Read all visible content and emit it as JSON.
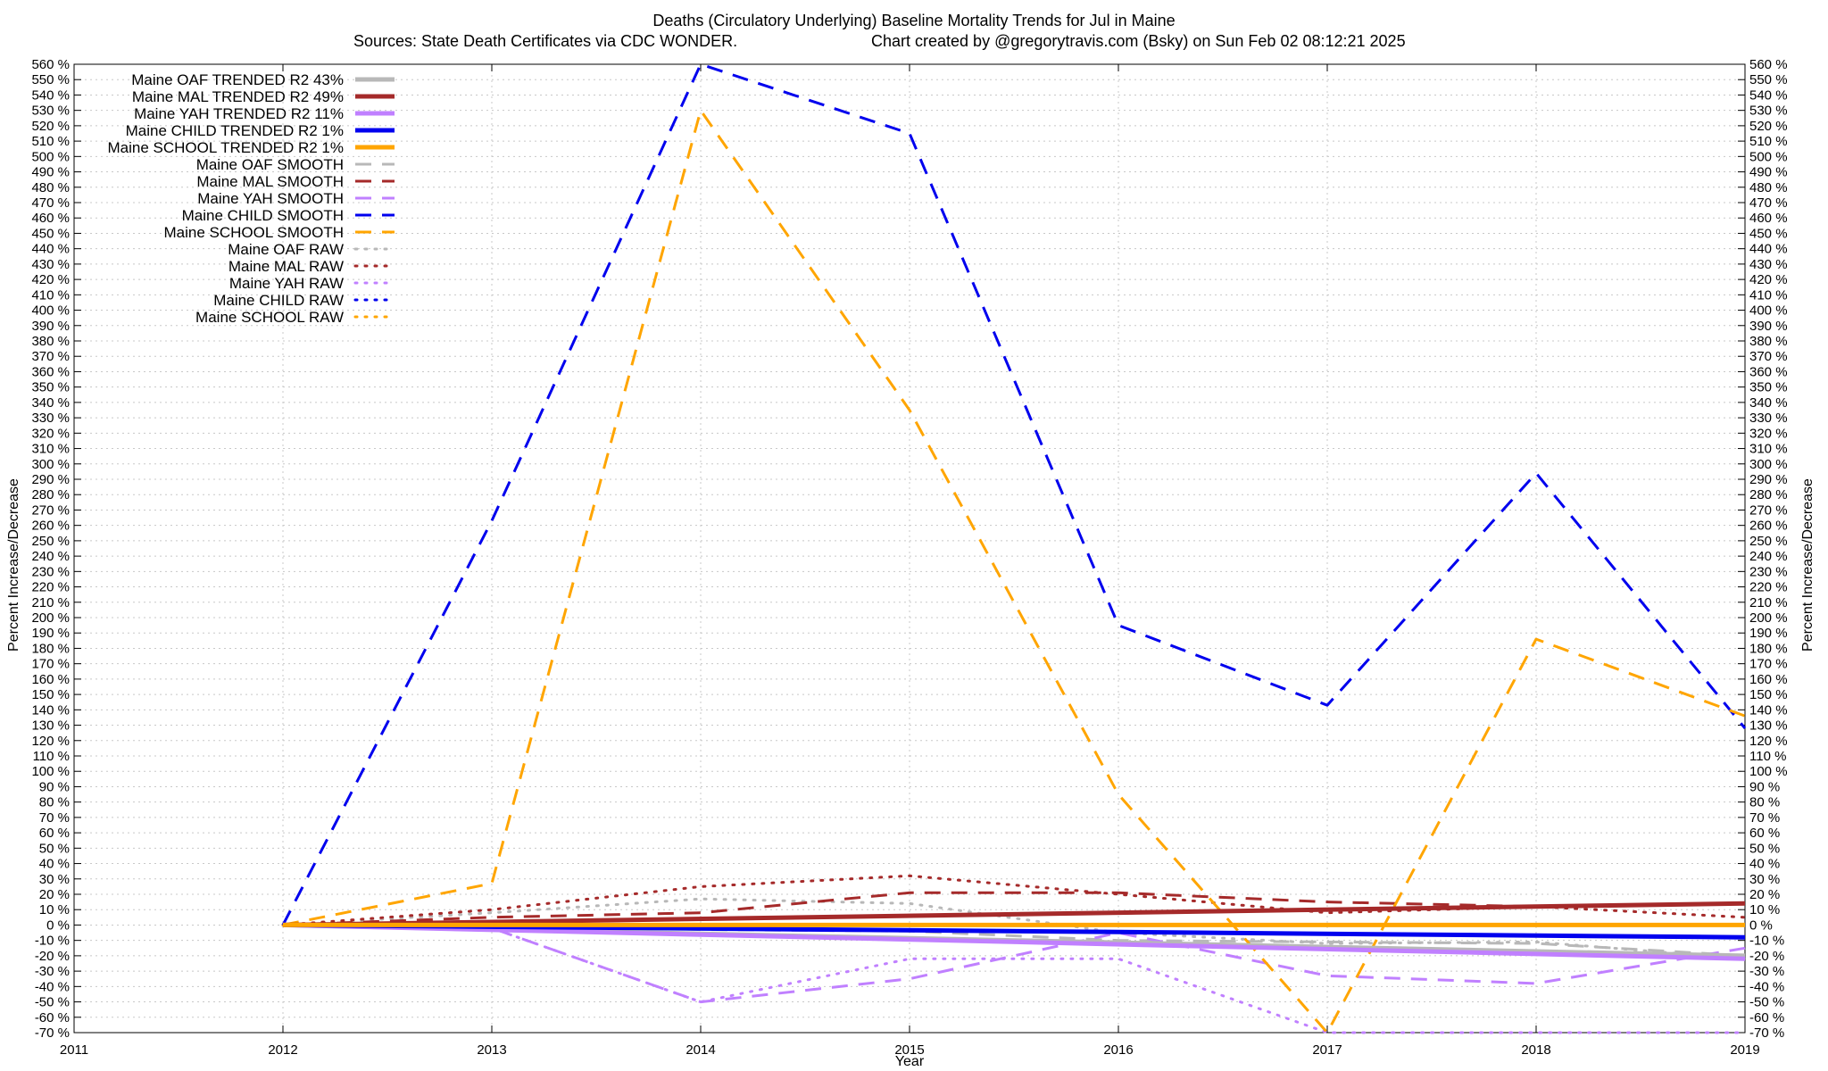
{
  "chart_data": {
    "type": "line",
    "title_line1": "Deaths (Circulatory Underlying)  Baseline Mortality Trends for Jul in Maine",
    "title_line2_left": "Sources: State Death Certificates via CDC WONDER.",
    "title_line2_right": "Chart created by @gregorytravis.com (Bsky) on Sun Feb 02 08:12:21 2025",
    "xlabel": "Year",
    "ylabel_left": "Percent Increase/Decrease",
    "ylabel_right": "Percent Increase/Decrease",
    "xlim": [
      2011,
      2019
    ],
    "ylim": [
      -70,
      560
    ],
    "x_ticks": [
      "2011",
      "2012",
      "2013",
      "2014",
      "2015",
      "2016",
      "2017",
      "2018",
      "2019"
    ],
    "y_tick_step": 10,
    "y_tick_suffix": " %",
    "grid": true,
    "legend_position": "top-left",
    "series": [
      {
        "name": "Maine OAF TRENDED R2  43%",
        "color": "#b8b8b8",
        "style": "trend",
        "x": [
          2012,
          2019
        ],
        "y": [
          0,
          -20
        ]
      },
      {
        "name": "Maine MAL TRENDED R2  49%",
        "color": "#a52a2a",
        "style": "trend",
        "x": [
          2012,
          2019
        ],
        "y": [
          0,
          14
        ]
      },
      {
        "name": "Maine YAH TRENDED R2  11%",
        "color": "#c080ff",
        "style": "trend",
        "x": [
          2012,
          2019
        ],
        "y": [
          0,
          -22
        ]
      },
      {
        "name": "Maine CHILD TRENDED R2  1%",
        "color": "#0000ee",
        "style": "trend",
        "x": [
          2012,
          2019
        ],
        "y": [
          0,
          -8
        ]
      },
      {
        "name": "Maine SCHOOL TRENDED R2  1%",
        "color": "#ffa500",
        "style": "trend",
        "x": [
          2012,
          2019
        ],
        "y": [
          0,
          0
        ]
      },
      {
        "name": "Maine OAF SMOOTH",
        "color": "#b8b8b8",
        "style": "smooth",
        "x": [
          2012,
          2013,
          2014,
          2015,
          2016,
          2017,
          2018,
          2019
        ],
        "y": [
          0,
          2,
          -3,
          -4,
          -10,
          -11,
          -12,
          -20
        ]
      },
      {
        "name": "Maine MAL SMOOTH",
        "color": "#a52a2a",
        "style": "smooth",
        "x": [
          2012,
          2013,
          2014,
          2015,
          2016,
          2017,
          2018,
          2019
        ],
        "y": [
          0,
          5,
          8,
          21,
          21,
          15,
          12,
          14
        ]
      },
      {
        "name": "Maine YAH SMOOTH",
        "color": "#c080ff",
        "style": "smooth",
        "x": [
          2012,
          2013,
          2014,
          2015,
          2016,
          2017,
          2018,
          2019
        ],
        "y": [
          0,
          -2,
          -50,
          -35,
          -5,
          -33,
          -38,
          -15
        ]
      },
      {
        "name": "Maine CHILD SMOOTH",
        "color": "#0000ee",
        "style": "smooth",
        "x": [
          2012,
          2013,
          2014,
          2015,
          2016,
          2017,
          2018,
          2019
        ],
        "y": [
          0,
          263,
          563,
          515,
          195,
          143,
          294,
          128
        ]
      },
      {
        "name": "Maine SCHOOL SMOOTH",
        "color": "#ffa500",
        "style": "smooth",
        "x": [
          2012,
          2013,
          2014,
          2015,
          2016,
          2017,
          2018,
          2019
        ],
        "y": [
          0,
          27,
          530,
          335,
          85,
          -70,
          186,
          136
        ]
      },
      {
        "name": "Maine OAF RAW",
        "color": "#b8b8b8",
        "style": "raw",
        "x": [
          2012,
          2013,
          2014,
          2015,
          2016,
          2017,
          2018,
          2019
        ],
        "y": [
          0,
          8,
          17,
          14,
          -5,
          -12,
          -11,
          -22
        ]
      },
      {
        "name": "Maine MAL RAW",
        "color": "#a52a2a",
        "style": "raw",
        "x": [
          2012,
          2013,
          2014,
          2015,
          2016,
          2017,
          2018,
          2019
        ],
        "y": [
          0,
          10,
          25,
          32,
          20,
          8,
          12,
          5
        ]
      },
      {
        "name": "Maine YAH RAW",
        "color": "#c080ff",
        "style": "raw",
        "x": [
          2012,
          2013,
          2014,
          2015,
          2016,
          2017,
          2018,
          2019
        ],
        "y": [
          0,
          -2,
          -50,
          -22,
          -22,
          -75,
          -75,
          -75
        ]
      },
      {
        "name": "Maine CHILD RAW",
        "color": "#0000ee",
        "style": "raw",
        "x": [
          2012,
          2013,
          2014,
          2015,
          2016,
          2017,
          2018,
          2019
        ],
        "y": [
          0,
          0,
          0,
          0,
          0,
          0,
          0,
          0
        ]
      },
      {
        "name": "Maine SCHOOL RAW",
        "color": "#ffa500",
        "style": "raw",
        "x": [
          2012,
          2013,
          2014,
          2015,
          2016,
          2017,
          2018,
          2019
        ],
        "y": [
          0,
          0,
          0,
          0,
          0,
          0,
          0,
          0
        ]
      }
    ]
  }
}
